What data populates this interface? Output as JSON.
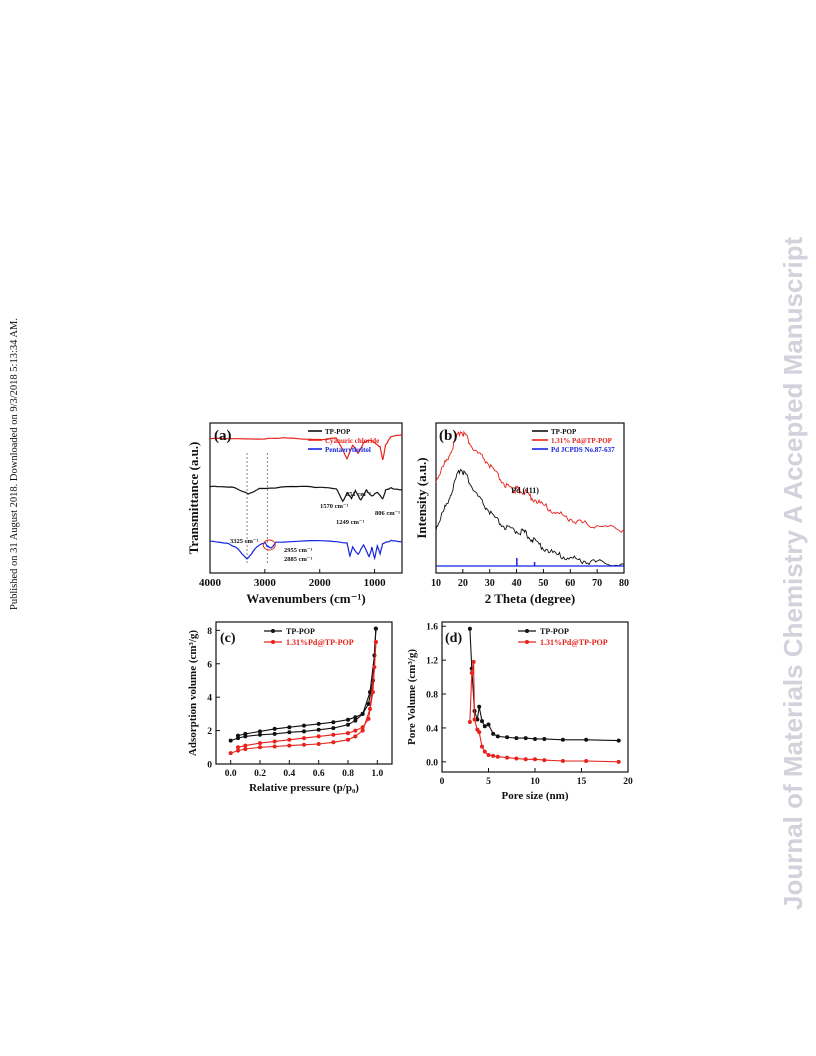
{
  "side_note": "Published on 31 August 2018. Downloaded on 9/3/2018 5:13:34 AM.",
  "watermark": "Journal of Materials Chemistry A Accepted Manuscript",
  "colors": {
    "black": "#111111",
    "red": "#e8211a",
    "blue": "#1524e0",
    "watermark": "#d2d2dc"
  },
  "chart_data": [
    {
      "panel": "(a)",
      "type": "line",
      "xlabel": "Wavenumbers (cm⁻¹)",
      "ylabel": "Transmittance (a.u.)",
      "xlim": [
        4000,
        500
      ],
      "xticks": [
        "4000",
        "3000",
        "2000",
        "1000"
      ],
      "legend_position": "top-right",
      "series": [
        {
          "name": "TP-POP",
          "color": "black",
          "offset": 0.55,
          "points": [
            [
              4000,
              0.1
            ],
            [
              3600,
              0.08
            ],
            [
              3300,
              -0.08
            ],
            [
              3100,
              0.05
            ],
            [
              2500,
              0.08
            ],
            [
              2000,
              0.08
            ],
            [
              1700,
              0.05
            ],
            [
              1580,
              -0.25
            ],
            [
              1500,
              -0.05
            ],
            [
              1420,
              -0.18
            ],
            [
              1350,
              0.0
            ],
            [
              1250,
              -0.22
            ],
            [
              1150,
              0.0
            ],
            [
              1050,
              -0.12
            ],
            [
              950,
              -0.05
            ],
            [
              851,
              -0.18
            ],
            [
              800,
              0.0
            ],
            [
              700,
              0.05
            ],
            [
              500,
              0.02
            ]
          ]
        },
        {
          "name": "Cyanuric chloride",
          "color": "red",
          "offset": 0.9,
          "points": [
            [
              4000,
              0.0
            ],
            [
              3000,
              -0.02
            ],
            [
              2600,
              0.0
            ],
            [
              2000,
              -0.03
            ],
            [
              1700,
              -0.01
            ],
            [
              1500,
              -0.45
            ],
            [
              1400,
              -0.15
            ],
            [
              1300,
              -0.35
            ],
            [
              1200,
              -0.1
            ],
            [
              1100,
              -0.05
            ],
            [
              1000,
              -0.1
            ],
            [
              900,
              -0.2
            ],
            [
              850,
              -0.5
            ],
            [
              800,
              -0.15
            ],
            [
              700,
              0.02
            ],
            [
              500,
              0.08
            ]
          ]
        },
        {
          "name": "Pentaerythritol",
          "color": "blue",
          "offset": 0.2,
          "points": [
            [
              4000,
              0.05
            ],
            [
              3700,
              0.0
            ],
            [
              3500,
              -0.12
            ],
            [
              3325,
              -0.35
            ],
            [
              3150,
              -0.1
            ],
            [
              3000,
              0.02
            ],
            [
              2955,
              -0.07
            ],
            [
              2885,
              -0.12
            ],
            [
              2800,
              0.02
            ],
            [
              2000,
              0.05
            ],
            [
              1500,
              0.0
            ],
            [
              1450,
              -0.3
            ],
            [
              1400,
              -0.1
            ],
            [
              1300,
              -0.25
            ],
            [
              1200,
              -0.05
            ],
            [
              1100,
              -0.3
            ],
            [
              1050,
              -0.1
            ],
            [
              1000,
              -0.35
            ],
            [
              950,
              -0.05
            ],
            [
              900,
              -0.25
            ],
            [
              850,
              0.0
            ],
            [
              700,
              0.05
            ],
            [
              500,
              0.02
            ]
          ]
        }
      ],
      "annotations": [
        "3325 cm⁻¹",
        "2955 cm⁻¹",
        "2885 cm⁻¹",
        "1570 cm⁻¹",
        "1249 cm⁻¹",
        "851 cm⁻¹",
        "806 cm⁻¹"
      ]
    },
    {
      "panel": "(b)",
      "type": "line",
      "xlabel": "2 Theta (degree)",
      "ylabel": "Intensity (a.u.)",
      "xlim": [
        10,
        80
      ],
      "xticks": [
        "10",
        "20",
        "30",
        "40",
        "50",
        "60",
        "70",
        "80"
      ],
      "legend_position": "top-right",
      "series": [
        {
          "name": "TP-POP",
          "color": "black",
          "points": [
            [
              10,
              0.3
            ],
            [
              13,
              0.42
            ],
            [
              16,
              0.55
            ],
            [
              19,
              0.7
            ],
            [
              21,
              0.66
            ],
            [
              24,
              0.55
            ],
            [
              28,
              0.45
            ],
            [
              32,
              0.36
            ],
            [
              36,
              0.3
            ],
            [
              40,
              0.28
            ],
            [
              43,
              0.27
            ],
            [
              46,
              0.22
            ],
            [
              50,
              0.17
            ],
            [
              55,
              0.12
            ],
            [
              60,
              0.1
            ],
            [
              65,
              0.08
            ],
            [
              70,
              0.07
            ],
            [
              80,
              0.06
            ]
          ]
        },
        {
          "name": "1.31% Pd@TP-POP",
          "color": "red",
          "points": [
            [
              10,
              0.62
            ],
            [
              13,
              0.72
            ],
            [
              16,
              0.83
            ],
            [
              19,
              0.95
            ],
            [
              21,
              0.92
            ],
            [
              24,
              0.82
            ],
            [
              28,
              0.76
            ],
            [
              32,
              0.67
            ],
            [
              36,
              0.58
            ],
            [
              39,
              0.55
            ],
            [
              40,
              0.56
            ],
            [
              43,
              0.54
            ],
            [
              46,
              0.5
            ],
            [
              50,
              0.45
            ],
            [
              55,
              0.4
            ],
            [
              60,
              0.36
            ],
            [
              65,
              0.33
            ],
            [
              70,
              0.31
            ],
            [
              80,
              0.29
            ]
          ]
        },
        {
          "name": "Pd JCPDS No.87-637",
          "color": "blue",
          "sticks": [
            40.1,
            46.7
          ]
        }
      ],
      "annotations": [
        "Pd (111)"
      ]
    },
    {
      "panel": "(c)",
      "type": "line",
      "xlabel": "Relative pressure (p/p₀)",
      "ylabel": "Adsorption volume (cm³/g)",
      "xlim": [
        -0.1,
        1.1
      ],
      "ylim": [
        0,
        8.5
      ],
      "xticks": [
        "0.0",
        "0.2",
        "0.4",
        "0.6",
        "0.8",
        "1.0"
      ],
      "yticks": [
        "0",
        "2",
        "4",
        "6",
        "8"
      ],
      "legend_position": "top-left",
      "series": [
        {
          "name": "TP-POP",
          "color": "black",
          "adsorption": [
            [
              0.0,
              1.4
            ],
            [
              0.05,
              1.55
            ],
            [
              0.1,
              1.65
            ],
            [
              0.2,
              1.75
            ],
            [
              0.3,
              1.8
            ],
            [
              0.4,
              1.9
            ],
            [
              0.5,
              1.95
            ],
            [
              0.6,
              2.05
            ],
            [
              0.7,
              2.15
            ],
            [
              0.8,
              2.35
            ],
            [
              0.85,
              2.6
            ],
            [
              0.9,
              3.0
            ],
            [
              0.95,
              4.3
            ],
            [
              0.98,
              6.5
            ],
            [
              0.99,
              8.1
            ]
          ],
          "desorption": [
            [
              0.99,
              8.1
            ],
            [
              0.97,
              5.0
            ],
            [
              0.94,
              3.6
            ],
            [
              0.9,
              3.0
            ],
            [
              0.85,
              2.8
            ],
            [
              0.8,
              2.65
            ],
            [
              0.7,
              2.5
            ],
            [
              0.6,
              2.4
            ],
            [
              0.5,
              2.3
            ],
            [
              0.4,
              2.2
            ],
            [
              0.3,
              2.1
            ],
            [
              0.2,
              1.95
            ],
            [
              0.1,
              1.8
            ],
            [
              0.05,
              1.7
            ]
          ]
        },
        {
          "name": "1.31%Pd@TP-POP",
          "color": "red",
          "adsorption": [
            [
              0.0,
              0.65
            ],
            [
              0.05,
              0.8
            ],
            [
              0.1,
              0.9
            ],
            [
              0.2,
              1.0
            ],
            [
              0.3,
              1.05
            ],
            [
              0.4,
              1.1
            ],
            [
              0.5,
              1.15
            ],
            [
              0.6,
              1.2
            ],
            [
              0.7,
              1.3
            ],
            [
              0.8,
              1.45
            ],
            [
              0.85,
              1.65
            ],
            [
              0.9,
              2.0
            ],
            [
              0.95,
              3.3
            ],
            [
              0.98,
              5.8
            ],
            [
              0.99,
              7.3
            ]
          ],
          "desorption": [
            [
              0.99,
              7.3
            ],
            [
              0.97,
              4.3
            ],
            [
              0.94,
              2.7
            ],
            [
              0.9,
              2.2
            ],
            [
              0.85,
              2.0
            ],
            [
              0.8,
              1.85
            ],
            [
              0.7,
              1.75
            ],
            [
              0.6,
              1.65
            ],
            [
              0.5,
              1.55
            ],
            [
              0.4,
              1.45
            ],
            [
              0.3,
              1.35
            ],
            [
              0.2,
              1.25
            ],
            [
              0.1,
              1.1
            ],
            [
              0.05,
              1.0
            ]
          ]
        }
      ]
    },
    {
      "panel": "(d)",
      "type": "line",
      "xlabel": "Pore size (nm)",
      "ylabel": "Pore Volume (cm³/g)",
      "xlim": [
        0,
        20
      ],
      "ylim": [
        -0.12,
        1.65
      ],
      "xticks": [
        "0",
        "5",
        "10",
        "15",
        "20"
      ],
      "yticks": [
        "0.0",
        "0.4",
        "0.8",
        "1.2",
        "1.6"
      ],
      "legend_position": "top-right",
      "series": [
        {
          "name": "TP-POP",
          "color": "black",
          "points": [
            [
              3.0,
              1.57
            ],
            [
              3.2,
              1.1
            ],
            [
              3.5,
              0.6
            ],
            [
              3.8,
              0.5
            ],
            [
              4.0,
              0.65
            ],
            [
              4.3,
              0.48
            ],
            [
              4.6,
              0.42
            ],
            [
              5.0,
              0.44
            ],
            [
              5.5,
              0.33
            ],
            [
              6.0,
              0.3
            ],
            [
              7.0,
              0.29
            ],
            [
              8.0,
              0.28
            ],
            [
              9.0,
              0.28
            ],
            [
              10.0,
              0.27
            ],
            [
              11.0,
              0.27
            ],
            [
              13.0,
              0.26
            ],
            [
              15.5,
              0.26
            ],
            [
              19.0,
              0.25
            ]
          ]
        },
        {
          "name": "1.31%Pd@TP-POP",
          "color": "red",
          "points": [
            [
              3.0,
              0.47
            ],
            [
              3.2,
              1.05
            ],
            [
              3.4,
              1.18
            ],
            [
              3.5,
              0.5
            ],
            [
              3.8,
              0.38
            ],
            [
              4.0,
              0.35
            ],
            [
              4.3,
              0.18
            ],
            [
              4.6,
              0.12
            ],
            [
              5.0,
              0.08
            ],
            [
              5.5,
              0.07
            ],
            [
              6.0,
              0.06
            ],
            [
              7.0,
              0.05
            ],
            [
              8.0,
              0.04
            ],
            [
              9.0,
              0.03
            ],
            [
              10.0,
              0.03
            ],
            [
              11.0,
              0.02
            ],
            [
              13.0,
              0.01
            ],
            [
              15.5,
              0.01
            ],
            [
              19.0,
              0.0
            ]
          ]
        }
      ]
    }
  ]
}
